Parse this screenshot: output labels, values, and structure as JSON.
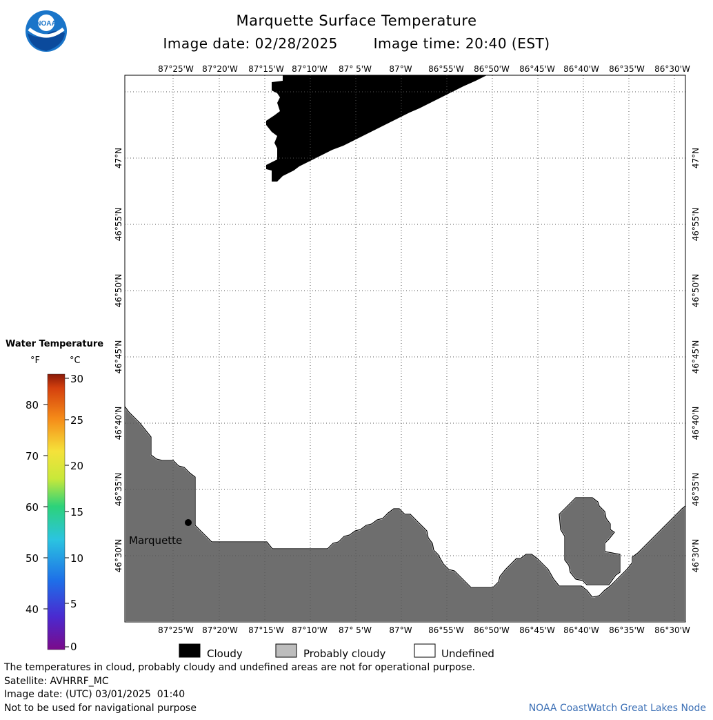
{
  "header": {
    "title": "Marquette Surface Temperature",
    "image_date_text": "Image date: 02/28/2025",
    "image_time_text": "Image time: 20:40 (EST)",
    "logo_text": "NOAA"
  },
  "map": {
    "lon_labels": [
      "87°25'W",
      "87°20'W",
      "87°15'W",
      "87°10'W",
      "87° 5'W",
      "87°W",
      "86°55'W",
      "86°50'W",
      "86°45'W",
      "86°40'W",
      "86°35'W",
      "86°30'W"
    ],
    "lat_labels": [
      "47°N",
      "46°55'N",
      "46°50'N",
      "46°45'N",
      "46°40'N",
      "46°35'N",
      "46°30'N"
    ],
    "place_label": "Marquette",
    "colors": {
      "land": "#6e6e6e",
      "cloudy": "#000000",
      "water": "#ffffff",
      "grid": "#555555"
    }
  },
  "legend": {
    "title": "Water Temperature",
    "unit_f": "°F",
    "unit_c": "°C",
    "f_ticks": [
      "80",
      "70",
      "60",
      "50",
      "40"
    ],
    "c_ticks": [
      "30",
      "25",
      "20",
      "15",
      "10",
      "5",
      "0"
    ]
  },
  "key": {
    "cloudy": "Cloudy",
    "probably_cloudy": "Probably cloudy",
    "undefined": "Undefined"
  },
  "footer": {
    "disclaimer": "The temperatures in cloud, probably cloudy and undefined areas are not for operational purpose.",
    "satellite": "Satellite: AVHRRF_MC",
    "utc_date": "Image date: (UTC) 03/01/2025  01:40",
    "navigation": "Not to be used for navigational purpose",
    "credit": "NOAA CoastWatch Great Lakes Node"
  }
}
